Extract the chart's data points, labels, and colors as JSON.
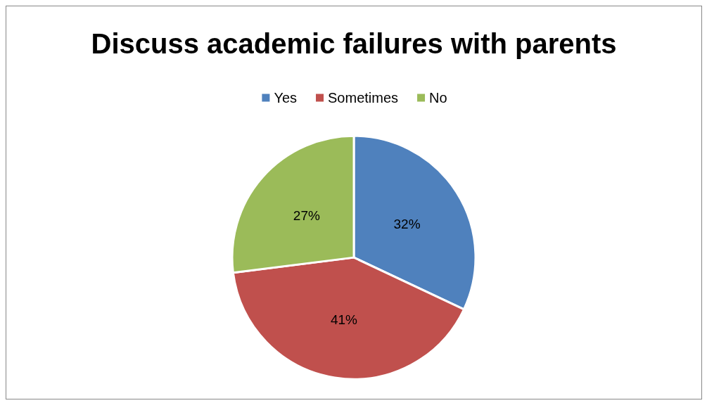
{
  "chart_data": {
    "type": "pie",
    "title": "Discuss academic failures with parents",
    "categories": [
      "Yes",
      "Sometimes",
      "No"
    ],
    "values": [
      32,
      41,
      27
    ],
    "colors": [
      "#4f81bd",
      "#c0504d",
      "#9bbb59"
    ],
    "value_labels": [
      "32%",
      "41%",
      "27%"
    ],
    "legend": "top"
  }
}
